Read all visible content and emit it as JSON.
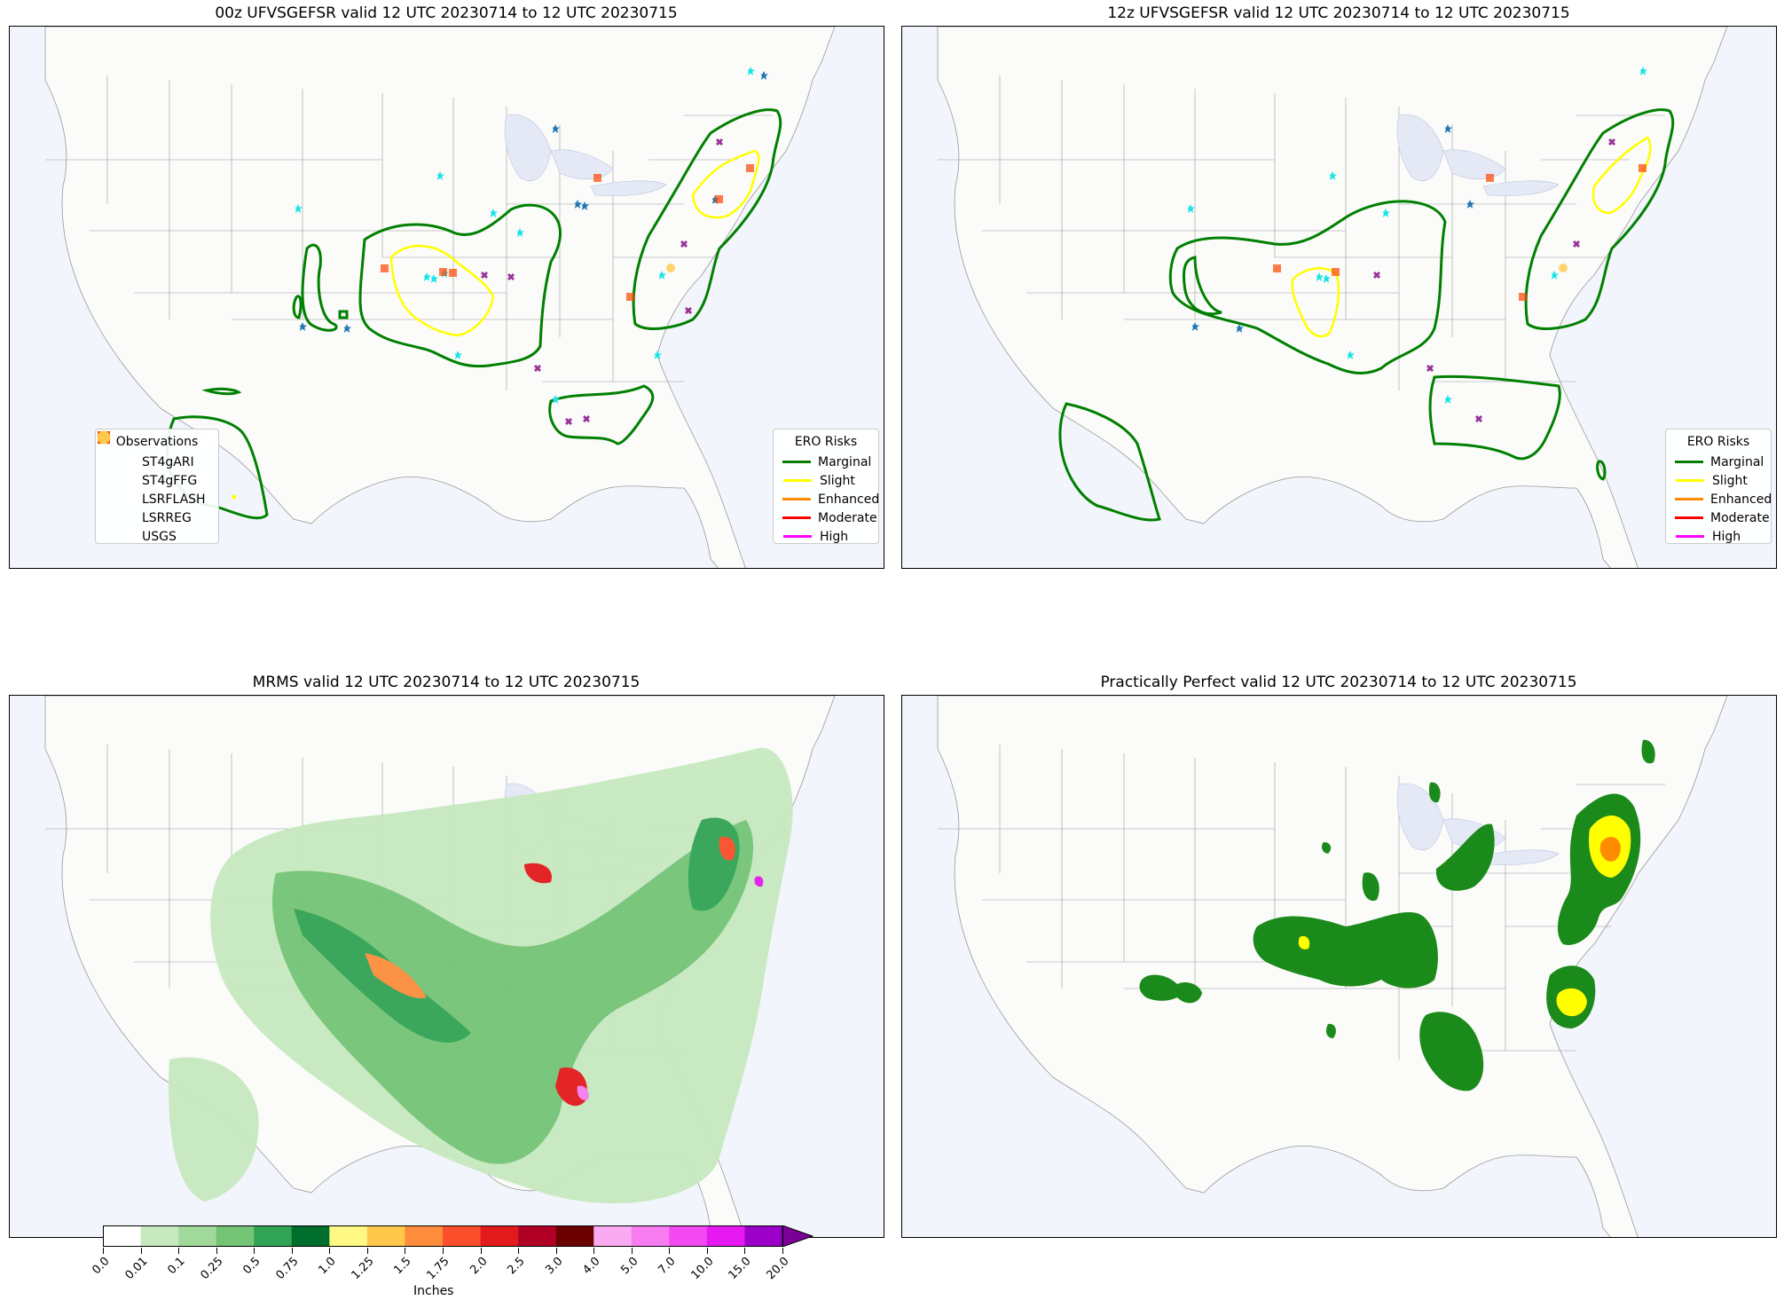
{
  "panels": {
    "p1": {
      "title": "00z UFVSGEFSR valid 12 UTC 20230714 to 12 UTC 20230715"
    },
    "p2": {
      "title": "12z UFVSGEFSR valid 12 UTC 20230714 to 12 UTC 20230715"
    },
    "p3": {
      "title": "MRMS valid 12 UTC 20230714 to 12 UTC 20230715"
    },
    "p4": {
      "title": "Practically Perfect valid 12 UTC 20230714 to 12 UTC 20230715"
    }
  },
  "observations_legend": {
    "title": "Observations",
    "items": [
      {
        "label": "ST4gARI",
        "color": "#1f77b4",
        "icon": "star-icon"
      },
      {
        "label": "ST4gFFG",
        "color": "#19e5e5",
        "icon": "star-icon"
      },
      {
        "label": "LSRFLASH",
        "color": "#800080",
        "icon": "x-marker-icon"
      },
      {
        "label": "LSRREG",
        "color": "#ff4500",
        "icon": "square-icon"
      },
      {
        "label": "USGS",
        "color": "#ffc84a",
        "icon": "circle-icon"
      }
    ]
  },
  "ero_legend": {
    "title": "ERO Risks",
    "items": [
      {
        "label": "Marginal",
        "color": "#008000"
      },
      {
        "label": "Slight",
        "color": "#ffff00"
      },
      {
        "label": "Enhanced",
        "color": "#ff8c00"
      },
      {
        "label": "Moderate",
        "color": "#ff0000"
      },
      {
        "label": "High",
        "color": "#ff00ff"
      }
    ]
  },
  "colorbar": {
    "title": "Inches",
    "ticks": [
      "0.0",
      "0.01",
      "0.1",
      "0.25",
      "0.5",
      "0.75",
      "1.0",
      "1.25",
      "1.5",
      "1.75",
      "2.0",
      "2.5",
      "3.0",
      "4.0",
      "5.0",
      "7.0",
      "10.0",
      "15.0",
      "20.0"
    ],
    "colors": [
      "#ffffff",
      "#c7e9c0",
      "#a1d99b",
      "#74c476",
      "#31a354",
      "#006d2c",
      "#fff884",
      "#ffc84a",
      "#fd8d3c",
      "#fc4e2a",
      "#e31a1c",
      "#b10026",
      "#6b0000",
      "#f9aaf0",
      "#f67cf0",
      "#f249f0",
      "#e619f0",
      "#9b00c8"
    ],
    "extend_color": "#7a0096"
  },
  "map_colors": {
    "land": "#fbfbfa",
    "ocean": "#f2f5fb",
    "lakes": "#e4e9f5",
    "borders": "#999999"
  }
}
